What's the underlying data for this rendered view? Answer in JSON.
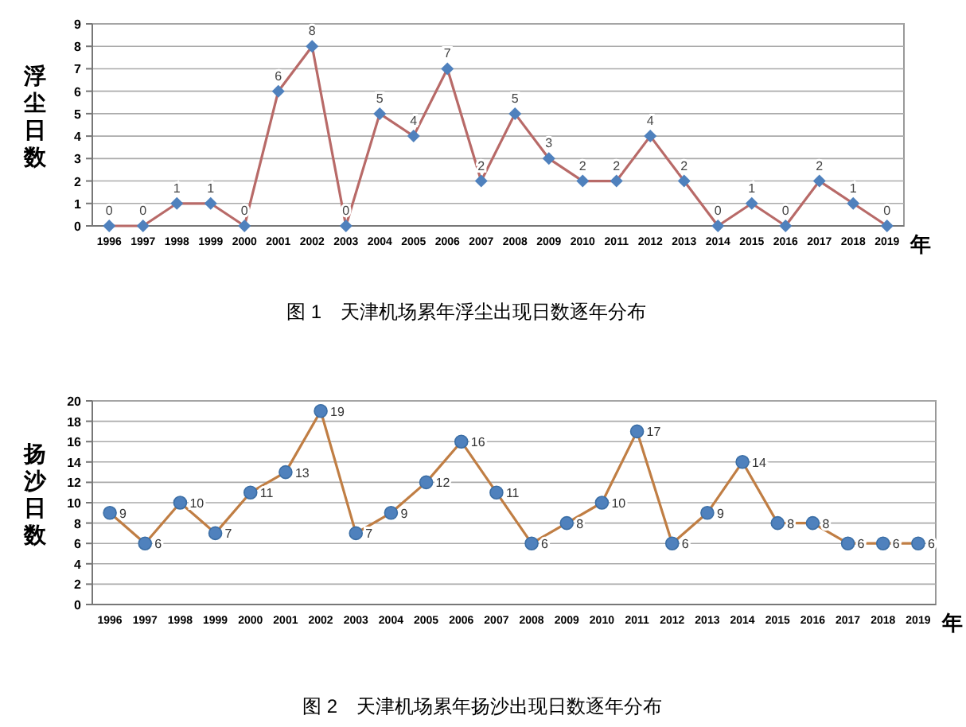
{
  "chart_data": [
    {
      "type": "line",
      "title": "图 1　天津机场累年浮尘出现日数逐年分布",
      "xlabel": "年",
      "ylabel": "浮尘日数",
      "categories": [
        "1996",
        "1997",
        "1998",
        "1999",
        "2000",
        "2001",
        "2002",
        "2003",
        "2004",
        "2005",
        "2006",
        "2007",
        "2008",
        "2009",
        "2010",
        "2011",
        "2012",
        "2013",
        "2014",
        "2015",
        "2016",
        "2017",
        "2018",
        "2019"
      ],
      "series": [
        {
          "color": "#b86a68",
          "values": [
            0,
            0,
            1,
            1,
            0,
            6,
            8,
            0,
            5,
            4,
            7,
            2,
            5,
            3,
            2,
            2,
            4,
            2,
            0,
            1,
            0,
            2,
            1,
            0
          ]
        }
      ],
      "ylim": [
        0,
        9
      ],
      "yticks": [
        0,
        1,
        2,
        3,
        4,
        5,
        6,
        7,
        8,
        9
      ],
      "grid": "y",
      "marker": "diamond",
      "data_labels": true
    },
    {
      "type": "line",
      "title": "图 2　天津机场累年扬沙出现日数逐年分布",
      "xlabel": "年",
      "ylabel": "扬沙日数",
      "categories": [
        "1996",
        "1997",
        "1998",
        "1999",
        "2000",
        "2001",
        "2002",
        "2003",
        "2004",
        "2005",
        "2006",
        "2007",
        "2008",
        "2009",
        "2010",
        "2011",
        "2012",
        "2013",
        "2014",
        "2015",
        "2016",
        "2017",
        "2018",
        "2019"
      ],
      "series": [
        {
          "color": "#c07e44",
          "values": [
            9,
            6,
            10,
            7,
            11,
            13,
            19,
            7,
            9,
            12,
            16,
            11,
            6,
            8,
            10,
            17,
            6,
            9,
            14,
            8,
            8,
            6,
            6,
            6
          ]
        }
      ],
      "ylim": [
        0,
        20
      ],
      "yticks": [
        0,
        2,
        4,
        6,
        8,
        10,
        12,
        14,
        16,
        18,
        20
      ],
      "grid": "y",
      "marker": "circle",
      "data_labels": true
    }
  ]
}
